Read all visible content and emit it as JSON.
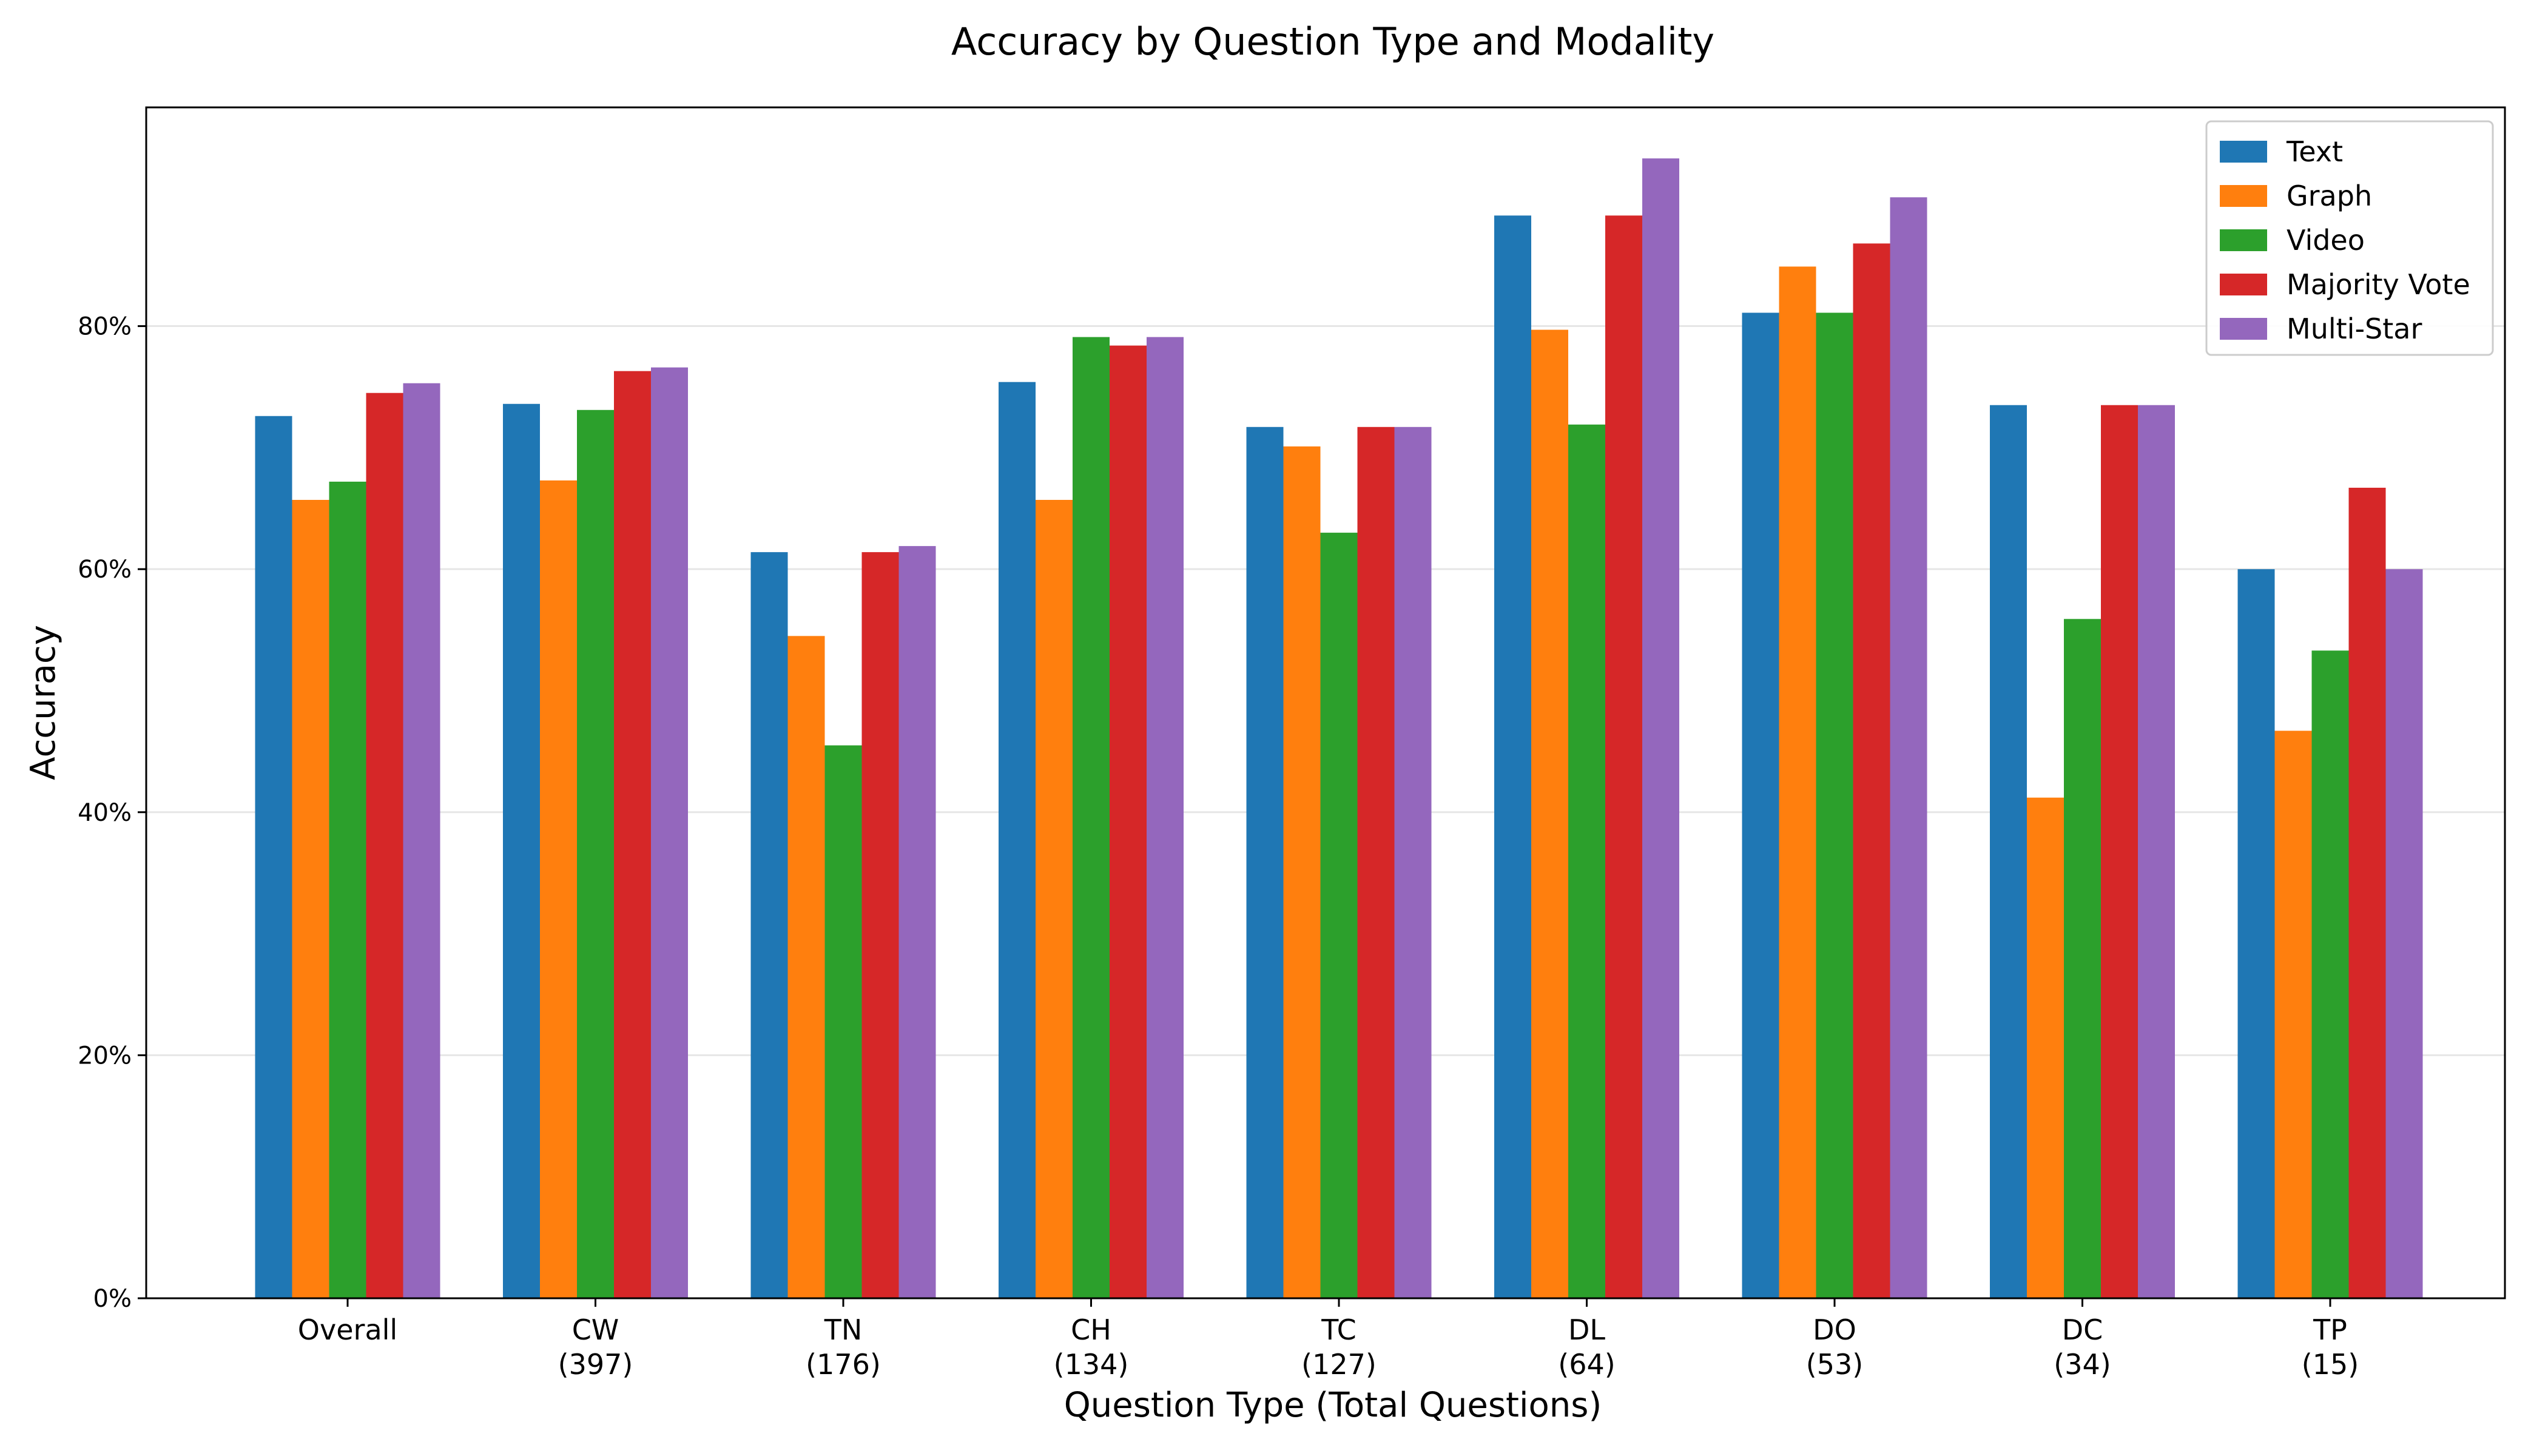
{
  "chart_data": {
    "type": "bar",
    "title": "Accuracy by Question Type and Modality",
    "xlabel": "Question Type (Total Questions)",
    "ylabel": "Accuracy",
    "ylim": [
      0,
      0.98
    ],
    "yticks": [
      0,
      0.2,
      0.4,
      0.6,
      0.8
    ],
    "ytick_labels": [
      "0%",
      "20%",
      "40%",
      "60%",
      "80%"
    ],
    "grid": "y",
    "legend": "top-right",
    "categories": [
      {
        "label": "Overall",
        "count": ""
      },
      {
        "label": "CW",
        "count": "(397)"
      },
      {
        "label": "TN",
        "count": "(176)"
      },
      {
        "label": "CH",
        "count": "(134)"
      },
      {
        "label": "TC",
        "count": "(127)"
      },
      {
        "label": "DL",
        "count": "(64)"
      },
      {
        "label": "DO",
        "count": "(53)"
      },
      {
        "label": "DC",
        "count": "(34)"
      },
      {
        "label": "TP",
        "count": "(15)"
      }
    ],
    "series": [
      {
        "name": "Text",
        "color": "#1f77b4",
        "values": [
          0.726,
          0.736,
          0.614,
          0.754,
          0.717,
          0.891,
          0.811,
          0.735,
          0.6
        ]
      },
      {
        "name": "Graph",
        "color": "#ff7f0e",
        "values": [
          0.657,
          0.673,
          0.545,
          0.657,
          0.701,
          0.797,
          0.849,
          0.412,
          0.467
        ]
      },
      {
        "name": "Video",
        "color": "#2ca02c",
        "values": [
          0.672,
          0.731,
          0.455,
          0.791,
          0.63,
          0.719,
          0.811,
          0.559,
          0.533
        ]
      },
      {
        "name": "Majority Vote",
        "color": "#d62728",
        "values": [
          0.745,
          0.763,
          0.614,
          0.784,
          0.717,
          0.891,
          0.868,
          0.735,
          0.667
        ]
      },
      {
        "name": "Multi-Star",
        "color": "#9467bd",
        "values": [
          0.753,
          0.766,
          0.619,
          0.791,
          0.717,
          0.938,
          0.906,
          0.735,
          0.6
        ]
      }
    ]
  }
}
